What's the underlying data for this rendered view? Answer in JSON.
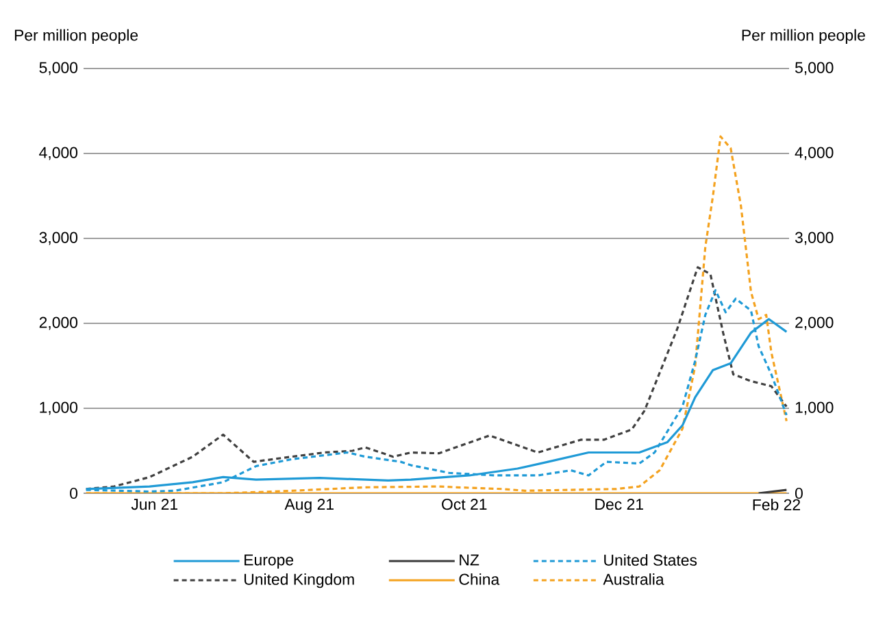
{
  "chart_data": {
    "type": "line",
    "ylabel": "Per million people",
    "y2label": "Per million people",
    "xlim": [
      "2021-05-04",
      "2022-02-06"
    ],
    "xticks": [
      {
        "value": "2021-06-01",
        "label": "Jun 21"
      },
      {
        "value": "2021-08-01",
        "label": "Aug 21"
      },
      {
        "value": "2021-10-01",
        "label": "Oct 21"
      },
      {
        "value": "2021-12-01",
        "label": "Dec 21"
      },
      {
        "value": "2022-02-01",
        "label": "Feb 22"
      }
    ],
    "ylim": [
      0,
      5000
    ],
    "yticks": [
      0,
      {
        "value": 1000,
        "label": "1,000"
      },
      {
        "value": 2000,
        "label": "2,000"
      },
      {
        "value": 3000,
        "label": "3,000"
      },
      {
        "value": 4000,
        "label": "4,000"
      },
      {
        "value": 5000,
        "label": "5,000"
      }
    ],
    "y2lim": [
      0,
      5000
    ],
    "y2ticks": [
      0,
      {
        "value": 1000,
        "label": "1,000"
      },
      {
        "value": 2000,
        "label": "2,000"
      },
      {
        "value": 3000,
        "label": "3,000"
      },
      {
        "value": 4000,
        "label": "4,000"
      },
      {
        "value": 5000,
        "label": "5,000"
      }
    ],
    "grid": "y",
    "legend": "bottom",
    "marker": "none",
    "series": [
      {
        "name": "Europe",
        "color": "#1f9ad6",
        "line_style": "solid",
        "x": [
          "2021-05-05",
          "2021-05-30",
          "2021-06-16",
          "2021-06-28",
          "2021-07-11",
          "2021-08-05",
          "2021-09-01",
          "2021-09-10",
          "2021-10-03",
          "2021-10-22",
          "2021-11-03",
          "2021-11-19",
          "2021-12-09",
          "2021-12-20",
          "2021-12-26",
          "2021-12-31",
          "2022-01-07",
          "2022-01-14",
          "2022-01-22",
          "2022-01-29",
          "2022-02-05"
        ],
        "values": [
          50,
          80,
          130,
          190,
          160,
          180,
          150,
          160,
          210,
          290,
          370,
          480,
          480,
          600,
          800,
          1130,
          1450,
          1530,
          1890,
          2050,
          1900
        ]
      },
      {
        "name": "NZ",
        "color": "#3a3a3a",
        "line_style": "solid",
        "x": [
          "2022-01-25",
          "2022-02-05"
        ],
        "values": [
          0,
          40
        ]
      },
      {
        "name": "United States",
        "color": "#1f9ad6",
        "line_style": "dashed",
        "x": [
          "2021-05-05",
          "2021-05-30",
          "2021-06-09",
          "2021-06-28",
          "2021-07-11",
          "2021-07-25",
          "2021-08-16",
          "2021-08-23",
          "2021-09-06",
          "2021-09-10",
          "2021-09-25",
          "2021-10-13",
          "2021-10-30",
          "2021-11-12",
          "2021-11-19",
          "2021-11-26",
          "2021-12-09",
          "2021-12-15",
          "2021-12-26",
          "2021-12-31",
          "2022-01-04",
          "2022-01-08",
          "2022-01-12",
          "2022-01-16",
          "2022-01-22",
          "2022-01-25",
          "2022-01-30",
          "2022-02-05"
        ],
        "values": [
          40,
          20,
          30,
          130,
          320,
          400,
          480,
          430,
          370,
          330,
          240,
          210,
          210,
          270,
          210,
          370,
          350,
          480,
          1020,
          1560,
          2100,
          2390,
          2130,
          2290,
          2150,
          1730,
          1400,
          920
        ]
      },
      {
        "name": "United Kingdom",
        "color": "#404040",
        "line_style": "dashed",
        "x": [
          "2021-05-05",
          "2021-05-16",
          "2021-05-30",
          "2021-06-16",
          "2021-06-28",
          "2021-07-10",
          "2021-07-25",
          "2021-08-07",
          "2021-08-18",
          "2021-08-23",
          "2021-09-03",
          "2021-09-10",
          "2021-09-21",
          "2021-10-11",
          "2021-10-30",
          "2021-11-16",
          "2021-11-25",
          "2021-12-06",
          "2021-12-11",
          "2021-12-24",
          "2022-01-01",
          "2022-01-06",
          "2022-01-11",
          "2022-01-15",
          "2022-01-22",
          "2022-01-30",
          "2022-02-05"
        ],
        "values": [
          50,
          80,
          190,
          430,
          690,
          370,
          430,
          480,
          500,
          540,
          430,
          480,
          470,
          680,
          480,
          630,
          630,
          750,
          970,
          1940,
          2660,
          2580,
          1890,
          1400,
          1320,
          1260,
          1020
        ]
      },
      {
        "name": "China",
        "color": "#f4a21f",
        "line_style": "solid",
        "x": [
          "2021-05-05",
          "2022-02-05"
        ],
        "values": [
          0,
          0
        ]
      },
      {
        "name": "Australia",
        "color": "#f4a21f",
        "line_style": "dashed",
        "x": [
          "2021-05-05",
          "2021-06-28",
          "2021-07-18",
          "2021-08-09",
          "2021-08-23",
          "2021-09-21",
          "2021-09-28",
          "2021-10-16",
          "2021-10-25",
          "2021-11-30",
          "2021-12-09",
          "2021-12-17",
          "2021-12-26",
          "2021-12-31",
          "2022-01-04",
          "2022-01-07",
          "2022-01-10",
          "2022-01-14",
          "2022-01-18",
          "2022-01-22",
          "2022-01-25",
          "2022-01-28",
          "2022-01-30",
          "2022-02-05"
        ],
        "values": [
          0,
          0,
          20,
          50,
          70,
          80,
          70,
          50,
          30,
          50,
          80,
          270,
          760,
          1500,
          2900,
          3500,
          4200,
          4060,
          3390,
          2370,
          2050,
          2100,
          1660,
          850
        ]
      }
    ]
  }
}
